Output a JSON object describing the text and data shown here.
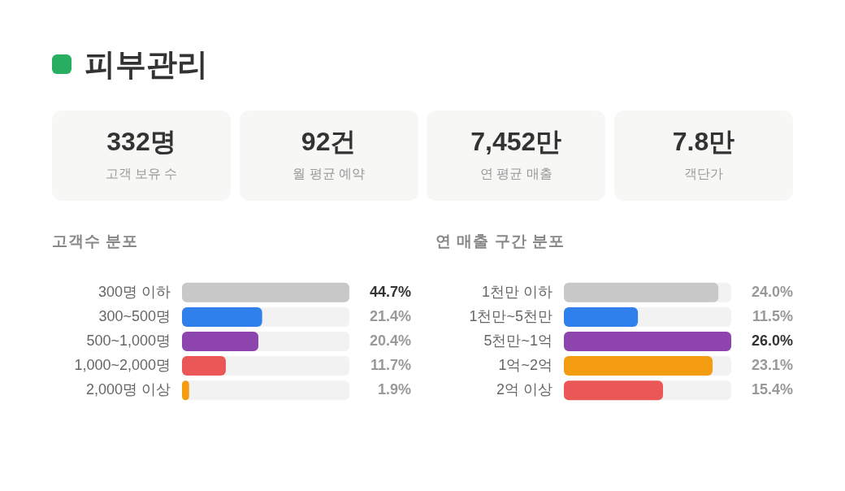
{
  "chart_data": [
    {
      "type": "other",
      "title": "피부관리",
      "annotations": [
        "332명",
        "고객 보유 수",
        "92건",
        "월 평균 예약",
        "7,452만",
        "연 평균 매출",
        "7.8만",
        "객단가"
      ]
    },
    {
      "type": "bar",
      "orientation": "horizontal",
      "title": "고객수 분포",
      "categories": [
        "300명 이하",
        "300~500명",
        "500~1,000명",
        "1,000~2,000명",
        "2,000명 이상"
      ],
      "values": [
        44.7,
        21.4,
        20.4,
        11.7,
        1.9
      ],
      "colors": [
        "#c8c8c8",
        "#2f80ed",
        "#8e44ad",
        "#eb5757",
        "#f39c12"
      ],
      "value_labels": [
        "44.7%",
        "21.4%",
        "20.4%",
        "11.7%",
        "1.9%"
      ]
    },
    {
      "type": "bar",
      "orientation": "horizontal",
      "title": "연 매출 구간 분포",
      "categories": [
        "1천만 이하",
        "1천만~5천만",
        "5천만~1억",
        "1억~2억",
        "2억 이상"
      ],
      "values": [
        24.0,
        11.5,
        26.0,
        23.1,
        15.4
      ],
      "colors": [
        "#c8c8c8",
        "#2f80ed",
        "#8e44ad",
        "#f39c12",
        "#eb5757"
      ],
      "value_labels": [
        "24.0%",
        "11.5%",
        "26.0%",
        "23.1%",
        "15.4%"
      ]
    }
  ]
}
